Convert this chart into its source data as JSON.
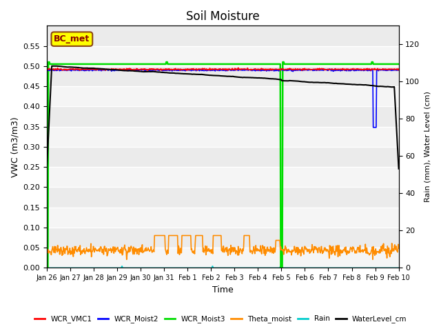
{
  "title": "Soil Moisture",
  "xlabel": "Time",
  "ylabel_left": "VWC (m3/m3)",
  "ylabel_right": "Rain (mm), Water Level (cm)",
  "ylim_left": [
    0.0,
    0.6
  ],
  "ylim_right": [
    0,
    130
  ],
  "yticks_left": [
    0.0,
    0.05,
    0.1,
    0.15,
    0.2,
    0.25,
    0.3,
    0.35,
    0.4,
    0.45,
    0.5,
    0.55
  ],
  "yticks_right": [
    0,
    20,
    40,
    60,
    80,
    100,
    120
  ],
  "xtick_labels": [
    "Jan 26",
    "Jan 27",
    "Jan 28",
    "Jan 29",
    "Jan 30",
    "Jan 31",
    "Feb 1",
    "Feb 2",
    "Feb 3",
    "Feb 4",
    "Feb 5",
    "Feb 6",
    "Feb 7",
    "Feb 8",
    "Feb 9",
    "Feb 10"
  ],
  "bg_color": "#ebebeb",
  "legend_labels": [
    "WCR_VMC1",
    "WCR_Moist2",
    "WCR_Moist3",
    "Theta_moist",
    "Rain",
    "WaterLevel_cm"
  ],
  "legend_colors": [
    "#ff0000",
    "#0000ff",
    "#00dd00",
    "#ff8c00",
    "#00cccc",
    "#000000"
  ],
  "annotation_box": "BC_met",
  "annotation_box_color": "#ffff00",
  "annotation_box_edge": "#8b4513"
}
